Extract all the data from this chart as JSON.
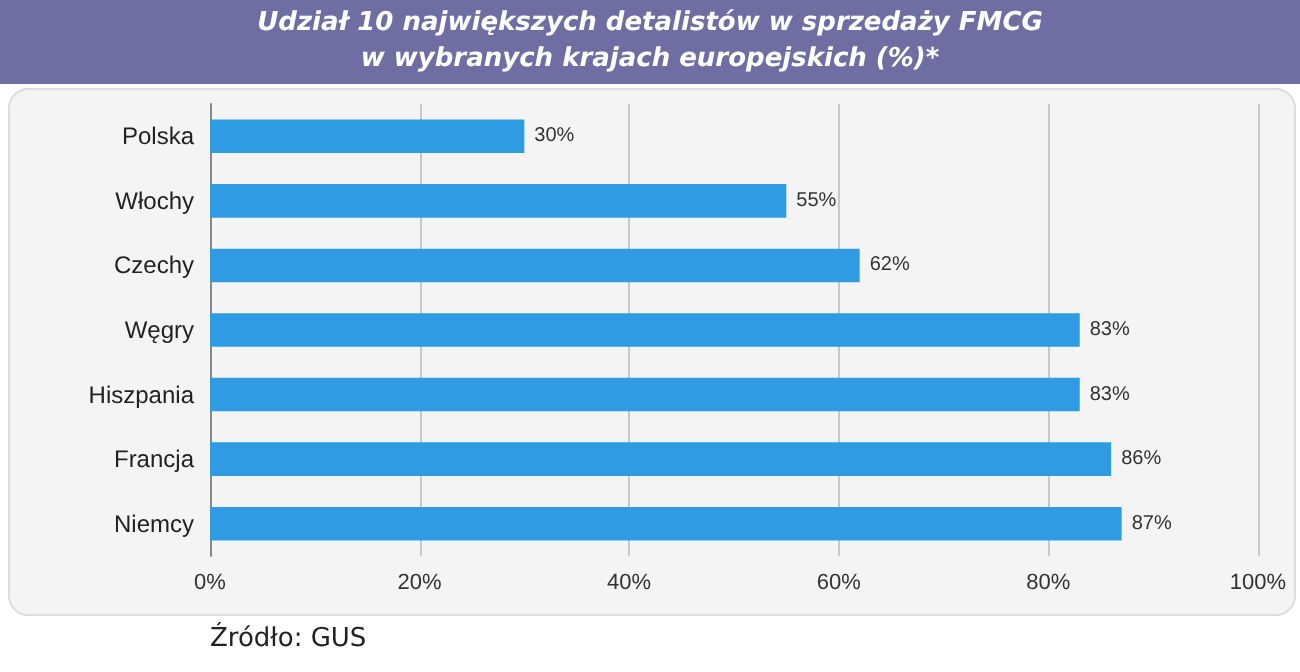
{
  "chart_data": {
    "type": "bar",
    "orientation": "horizontal",
    "title": "Udział 10 największych detalistów w sprzedaży FMCG\nw wybranych krajach europejskich (%)*",
    "categories": [
      "Polska",
      "Włochy",
      "Czechy",
      "Węgry",
      "Hiszpania",
      "Francja",
      "Niemcy"
    ],
    "values": [
      30,
      55,
      62,
      83,
      83,
      86,
      87
    ],
    "value_labels": [
      "30%",
      "55%",
      "62%",
      "83%",
      "83%",
      "86%",
      "87%"
    ],
    "color": "#2f9be3",
    "xlim": [
      0,
      100
    ],
    "xticks": [
      {
        "value": 0,
        "label": "0%"
      },
      {
        "value": 20,
        "label": "20%"
      },
      {
        "value": 40,
        "label": "40%"
      },
      {
        "value": 60,
        "label": "60%"
      },
      {
        "value": 80,
        "label": "80%"
      },
      {
        "value": 100,
        "label": "100%"
      }
    ],
    "grid": "x",
    "annotations": [
      "Źródło: GUS"
    ]
  }
}
